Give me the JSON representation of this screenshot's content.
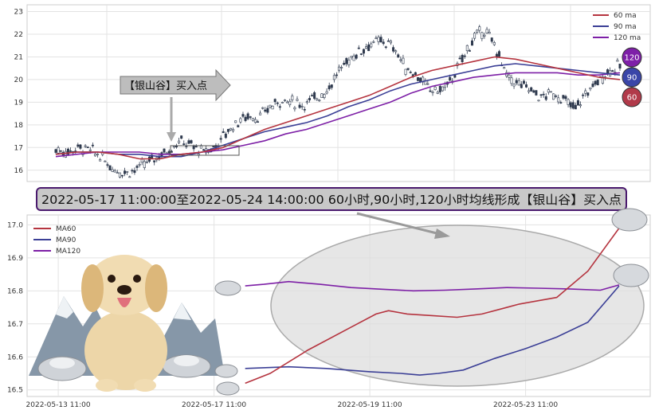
{
  "banner": {
    "text": "2022-05-17 11:00:00至2022-05-24 14:00:00 60小时,90小时,120小时均线形成【银山谷】买入点"
  },
  "callout": {
    "text": "【银山谷】买入点"
  },
  "badges": [
    {
      "label": "120",
      "color": "#7e1fa8"
    },
    {
      "label": "90",
      "color": "#3a46a8"
    },
    {
      "label": "60",
      "color": "#b13a4a"
    }
  ],
  "colors": {
    "ma60": "#b5343f",
    "ma90": "#3b3f96",
    "ma120": "#7d1fa6",
    "candle": "#2f3a4e"
  },
  "chart_data": [
    {
      "type": "line",
      "description_ref": "upper panel: hourly candles with moving averages",
      "ylim": [
        15.5,
        23.3
      ],
      "yticks": [
        16,
        17,
        18,
        19,
        20,
        21,
        22,
        23
      ],
      "legend": [
        {
          "name": "60 ma",
          "key": "ma60"
        },
        {
          "name": "90 ma",
          "key": "ma90"
        },
        {
          "name": "120 ma",
          "key": "ma120"
        }
      ],
      "legend_position": "top-right",
      "grid": true,
      "price_path": [
        16.9,
        16.8,
        17.0,
        16.9,
        16.6,
        16.1,
        15.9,
        16.0,
        16.3,
        16.6,
        16.9,
        17.3,
        17.1,
        16.8,
        17.0,
        17.6,
        18.1,
        18.4,
        18.3,
        18.8,
        19.1,
        19.0,
        18.9,
        19.2,
        19.5,
        20.3,
        20.9,
        21.3,
        21.6,
        21.7,
        21.4,
        20.5,
        20.2,
        19.6,
        19.5,
        19.9,
        20.9,
        21.8,
        22.2,
        21.4,
        20.1,
        19.8,
        19.6,
        19.2,
        19.4,
        19.1,
        18.7,
        19.4,
        19.9,
        20.4,
        20.6
      ],
      "ma60": [
        16.7,
        16.8,
        16.8,
        16.7,
        16.5,
        16.5,
        16.7,
        16.8,
        17.0,
        17.4,
        17.8,
        18.1,
        18.4,
        18.7,
        19.0,
        19.3,
        19.7,
        20.1,
        20.4,
        20.6,
        20.8,
        21.0,
        20.9,
        20.7,
        20.5,
        20.3,
        20.1,
        20.0
      ],
      "ma90": [
        16.7,
        16.8,
        16.8,
        16.7,
        16.7,
        16.6,
        16.6,
        16.8,
        17.1,
        17.4,
        17.7,
        17.9,
        18.1,
        18.4,
        18.8,
        19.1,
        19.5,
        19.8,
        20.0,
        20.2,
        20.4,
        20.6,
        20.7,
        20.6,
        20.5,
        20.4,
        20.3,
        20.2
      ],
      "ma120": [
        16.6,
        16.7,
        16.8,
        16.8,
        16.8,
        16.7,
        16.7,
        16.8,
        16.9,
        17.1,
        17.3,
        17.6,
        17.8,
        18.1,
        18.4,
        18.7,
        19.0,
        19.4,
        19.7,
        19.9,
        20.1,
        20.2,
        20.3,
        20.3,
        20.3,
        20.2,
        20.2,
        20.3
      ]
    },
    {
      "type": "line",
      "description_ref": "lower panel: zoom of moving averages",
      "ylim": [
        16.48,
        17.03
      ],
      "yticks": [
        16.5,
        16.6,
        16.7,
        16.8,
        16.9,
        17.0
      ],
      "xticks": [
        {
          "label": "2022-05-13 11:00",
          "pos": 0.05
        },
        {
          "label": "2022-05-17 11:00",
          "pos": 0.3
        },
        {
          "label": "2022-05-19 11:00",
          "pos": 0.55
        },
        {
          "label": "2022-05-23 11:00",
          "pos": 0.8
        }
      ],
      "legend": [
        {
          "name": "MA60",
          "key": "ma60"
        },
        {
          "name": "MA90",
          "key": "ma90"
        },
        {
          "name": "MA120",
          "key": "ma120"
        }
      ],
      "legend_position": "top-left",
      "grid": true,
      "ma60": {
        "x": [
          0.35,
          0.39,
          0.45,
          0.52,
          0.56,
          0.58,
          0.61,
          0.65,
          0.69,
          0.73,
          0.79,
          0.85,
          0.9,
          0.95
        ],
        "y": [
          16.52,
          16.55,
          16.62,
          16.69,
          16.73,
          16.74,
          16.73,
          16.725,
          16.72,
          16.73,
          16.76,
          16.78,
          16.86,
          16.99
        ]
      },
      "ma90": {
        "x": [
          0.35,
          0.42,
          0.48,
          0.55,
          0.6,
          0.63,
          0.66,
          0.7,
          0.75,
          0.8,
          0.85,
          0.9,
          0.95
        ],
        "y": [
          16.565,
          16.57,
          16.565,
          16.555,
          16.55,
          16.545,
          16.55,
          16.56,
          16.595,
          16.625,
          16.66,
          16.705,
          16.815
        ]
      },
      "ma120": {
        "x": [
          0.35,
          0.38,
          0.42,
          0.47,
          0.52,
          0.57,
          0.62,
          0.67,
          0.72,
          0.77,
          0.82,
          0.87,
          0.92,
          0.95
        ],
        "y": [
          16.815,
          16.82,
          16.828,
          16.82,
          16.81,
          16.805,
          16.8,
          16.802,
          16.806,
          16.81,
          16.808,
          16.806,
          16.802,
          16.818
        ]
      }
    }
  ]
}
